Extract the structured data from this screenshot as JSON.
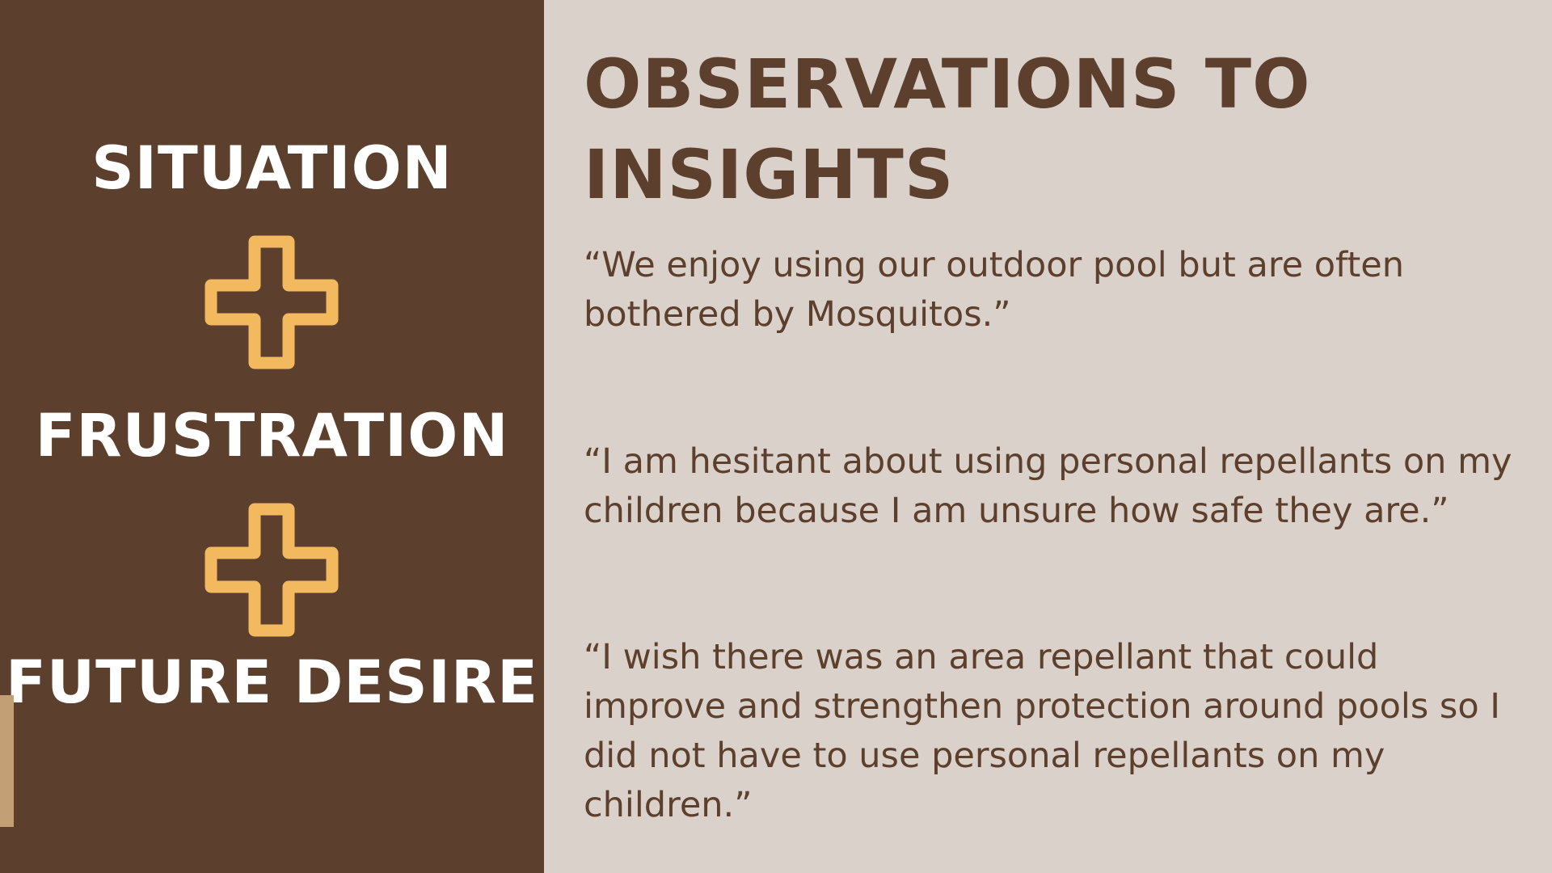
{
  "left_panel": {
    "labels": [
      "SITUATION",
      "FRUSTRATION",
      "FUTURE DESIRE"
    ],
    "plus_icon": "plus-icon",
    "accent_color": "#f2b95f"
  },
  "main": {
    "title": "OBSERVATIONS TO INSIGHTS",
    "quotes": [
      "“We enjoy using our outdoor pool but are often bothered by Mosquitos.”",
      "“I am hesitant about using personal repellants on my children because I am unsure how safe they are.”",
      "“I wish there was an area repellant that could improve and strengthen protection around pools so I did not have to use personal repellants on my children.”"
    ]
  },
  "colors": {
    "panel": "#5c402d",
    "background": "#dbd1cb",
    "text": "#5c402d",
    "accent_bar": "#c29f75"
  }
}
